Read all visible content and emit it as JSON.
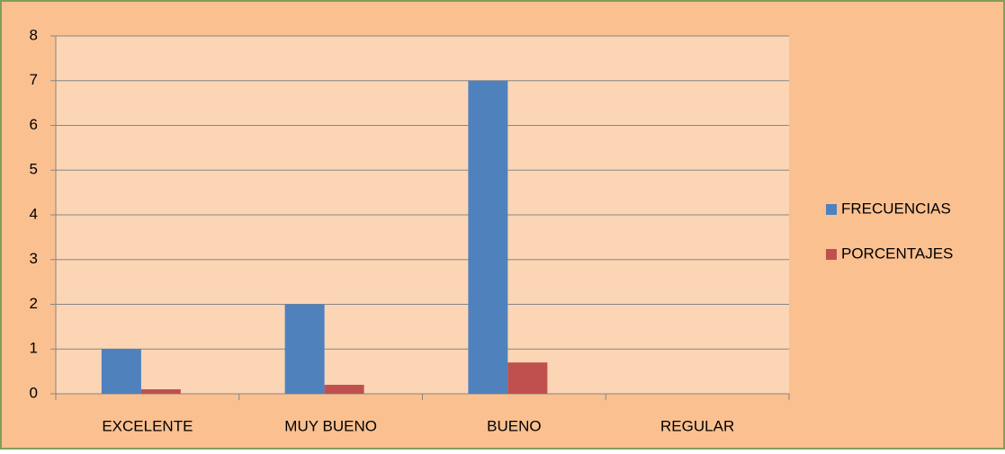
{
  "chart_data": {
    "type": "bar",
    "categories": [
      "EXCELENTE",
      "MUY BUENO",
      "BUENO",
      "REGULAR"
    ],
    "series": [
      {
        "name": "FRECUENCIAS",
        "color": "#4f81bd",
        "values": [
          1,
          2,
          7,
          0
        ]
      },
      {
        "name": "PORCENTAJES",
        "color": "#c0504d",
        "values": [
          0.1,
          0.2,
          0.7,
          0
        ]
      }
    ],
    "ylim": [
      0,
      8
    ],
    "yticks": [
      0,
      1,
      2,
      3,
      4,
      5,
      6,
      7,
      8
    ],
    "grid": true,
    "legend": "right"
  }
}
